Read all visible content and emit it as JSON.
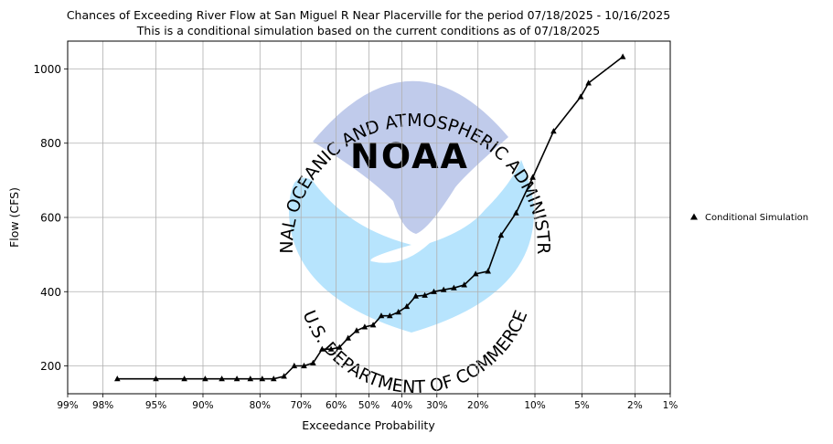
{
  "chart_data": {
    "type": "line",
    "title": "Chances of Exceeding River Flow at San Miguel R Near Placerville for the period 07/18/2025 - 10/16/2025",
    "subtitle": "This is a conditional simulation based on the current conditions as of 07/18/2025",
    "xlabel": "Exceedance Probability",
    "ylabel": "Flow (CFS)",
    "x_scale": "normal-probability",
    "x_ticks": [
      {
        "p": 99,
        "label": "99%"
      },
      {
        "p": 98,
        "label": "98%"
      },
      {
        "p": 95,
        "label": "95%"
      },
      {
        "p": 90,
        "label": "90%"
      },
      {
        "p": 80,
        "label": "80%"
      },
      {
        "p": 70,
        "label": "70%"
      },
      {
        "p": 60,
        "label": "60%"
      },
      {
        "p": 50,
        "label": "50%"
      },
      {
        "p": 40,
        "label": "40%"
      },
      {
        "p": 30,
        "label": "30%"
      },
      {
        "p": 20,
        "label": "20%"
      },
      {
        "p": 10,
        "label": "10%"
      },
      {
        "p": 5,
        "label": "5%"
      },
      {
        "p": 2,
        "label": "2%"
      },
      {
        "p": 1,
        "label": "1%"
      }
    ],
    "y_ticks": [
      200,
      400,
      600,
      800,
      1000
    ],
    "ylim": [
      125,
      1075
    ],
    "grid": true,
    "legend_position": "right",
    "series": [
      {
        "name": "Conditional Simulation",
        "color": "#000000",
        "marker": "triangle",
        "points": [
          {
            "p": 97.4,
            "flow": 165
          },
          {
            "p": 95,
            "flow": 165
          },
          {
            "p": 92.3,
            "flow": 165
          },
          {
            "p": 89.7,
            "flow": 165
          },
          {
            "p": 87.2,
            "flow": 165
          },
          {
            "p": 84.6,
            "flow": 165
          },
          {
            "p": 82,
            "flow": 165
          },
          {
            "p": 79.5,
            "flow": 165
          },
          {
            "p": 76.9,
            "flow": 165
          },
          {
            "p": 74.4,
            "flow": 172
          },
          {
            "p": 71.8,
            "flow": 200
          },
          {
            "p": 69.2,
            "flow": 200
          },
          {
            "p": 66.7,
            "flow": 208
          },
          {
            "p": 64.1,
            "flow": 245
          },
          {
            "p": 61.5,
            "flow": 245
          },
          {
            "p": 59,
            "flow": 250
          },
          {
            "p": 56.4,
            "flow": 275
          },
          {
            "p": 53.8,
            "flow": 295
          },
          {
            "p": 51.3,
            "flow": 305
          },
          {
            "p": 48.7,
            "flow": 310
          },
          {
            "p": 46.2,
            "flow": 335
          },
          {
            "p": 43.6,
            "flow": 335
          },
          {
            "p": 41,
            "flow": 345
          },
          {
            "p": 38.5,
            "flow": 360
          },
          {
            "p": 35.9,
            "flow": 388
          },
          {
            "p": 33.3,
            "flow": 390
          },
          {
            "p": 30.8,
            "flow": 400
          },
          {
            "p": 28.2,
            "flow": 405
          },
          {
            "p": 25.6,
            "flow": 410
          },
          {
            "p": 23.1,
            "flow": 418
          },
          {
            "p": 20.5,
            "flow": 448
          },
          {
            "p": 17.9,
            "flow": 455
          },
          {
            "p": 15.4,
            "flow": 552
          },
          {
            "p": 12.8,
            "flow": 612
          },
          {
            "p": 10.3,
            "flow": 708
          },
          {
            "p": 7.7,
            "flow": 832
          },
          {
            "p": 5.1,
            "flow": 925
          },
          {
            "p": 4.5,
            "flow": 962
          },
          {
            "p": 2.5,
            "flow": 1033
          }
        ]
      }
    ]
  },
  "watermark": {
    "logo_text": "NOAA",
    "ring_top": "NATIONAL OCEANIC AND ATMOSPHERIC ADMINISTRATION",
    "ring_bottom": "U.S. DEPARTMENT OF COMMERCE",
    "colors": {
      "dark": "#c0cbeb",
      "light": "#b7e4fd"
    }
  }
}
